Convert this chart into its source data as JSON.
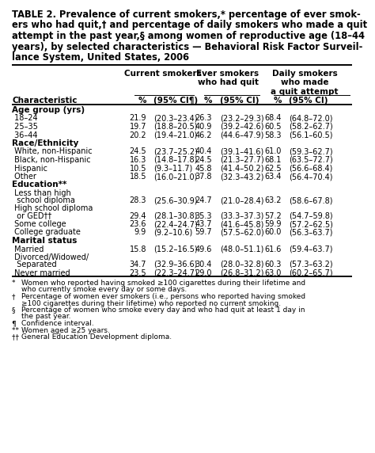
{
  "title_line1": "TABLE 2. Prevalence of current smokers,* percentage of ever smok-",
  "title_line2": "ers who had quit,† and percentage of daily smokers who made a quit",
  "title_line3": "attempt in the past year,§ among women of reproductive age (18–44",
  "title_line4": "years), by selected characteristics — Behavioral Risk Factor Surveil-",
  "title_line5": "lance System, United States, 2006",
  "grp_hdr1": "Current smokers",
  "grp_hdr2": "Ever smokers\nwho had quit",
  "grp_hdr3": "Daily smokers\nwho made\na quit attempt",
  "col_hdr": [
    "Characteristic",
    "%",
    "(95% CI¶)",
    "%",
    "(95% CI)",
    "%",
    "(95% CI)"
  ],
  "sections": [
    {
      "header": "Age group (yrs)",
      "rows": [
        [
          " 18–24",
          "21.9",
          "(20.3–23.4)",
          "26.3",
          "(23.2–29.3)",
          "68.4",
          "(64.8–72.0)"
        ],
        [
          " 25–35",
          "19.7",
          "(18.8–20.5)",
          "40.9",
          "(39.2–42.6)",
          "60.5",
          "(58.2–62.7)"
        ],
        [
          " 36–44",
          "20.2",
          "(19.4–21.0)",
          "46.2",
          "(44.6–47.9)",
          "58.3",
          "(56.1–60.5)"
        ]
      ]
    },
    {
      "header": "Race/Ethnicity",
      "rows": [
        [
          " White, non-Hispanic",
          "24.5",
          "(23.7–25.2)",
          "40.4",
          "(39.1–41.6)",
          "61.0",
          "(59.3–62.7)"
        ],
        [
          " Black, non-Hispanic",
          "16.3",
          "(14.8–17.8)",
          "24.5",
          "(21.3–27.7)",
          "68.1",
          "(63.5–72.7)"
        ],
        [
          " Hispanic",
          "10.5",
          "(9.3–11.7)",
          "45.8",
          "(41.4–50.2)",
          "62.5",
          "(56.6–68.4)"
        ],
        [
          " Other",
          "18.5",
          "(16.0–21.0)",
          "37.8",
          "(32.3–43.2)",
          "63.4",
          "(56.4–70.4)"
        ]
      ]
    },
    {
      "header": "Education**",
      "rows": [
        [
          " Less than high\n  school diploma",
          "28.3",
          "(25.6–30.9)",
          "24.7",
          "(21.0–28.4)",
          "63.2",
          "(58.6–67.8)"
        ],
        [
          " High school diploma\n  or GED††",
          "29.4",
          "(28.1–30.8)",
          "35.3",
          "(33.3–37.3)",
          "57.2",
          "(54.7–59.8)"
        ],
        [
          " Some college",
          "23.6",
          "(22.4–24.7)",
          "43.7",
          "(41.6–45.8)",
          "59.9",
          "(57.2–62.5)"
        ],
        [
          " College graduate",
          "9.9",
          "(9.2–10.6)",
          "59.7",
          "(57.5–62.0)",
          "60.0",
          "(56.3–63.7)"
        ]
      ]
    },
    {
      "header": "Marital status",
      "rows": [
        [
          " Married",
          "15.8",
          "(15.2–16.5)",
          "49.6",
          "(48.0–51.1)",
          "61.6",
          "(59.4–63.7)"
        ],
        [
          " Divorced/Widowed/\n  Separated",
          "34.7",
          "(32.9–36.6)",
          "30.4",
          "(28.0–32.8)",
          "60.3",
          "(57.3–63.2)"
        ],
        [
          " Never married",
          "23.5",
          "(22.3–24.7)",
          "29.0",
          "(26.8–31.2)",
          "63.0",
          "(60.2–65.7)"
        ]
      ]
    }
  ],
  "footnotes": [
    [
      "* ",
      "Women who reported having smoked ≥100 cigarettes during their lifetime and who currently smoke every day or some days."
    ],
    [
      "† ",
      "Percentage of women ever smokers (i.e., persons who reported having smoked ≥100 cigarettes during their lifetime) who reported no current smoking."
    ],
    [
      "§ ",
      "Percentage of women who smoke every day and who had quit at least 1 day in the past year."
    ],
    [
      "¶ ",
      "Confidence interval."
    ],
    [
      "** ",
      "Women aged ≥25 years."
    ],
    [
      "†† ",
      "General Education Development diploma."
    ]
  ],
  "bg_color": "#ffffff",
  "text_color": "#000000",
  "fs": 7.0,
  "fs_hdr": 7.5,
  "fs_title": 8.3,
  "fs_fn": 6.5,
  "lw_thick": 1.4,
  "lw_thin": 0.7
}
